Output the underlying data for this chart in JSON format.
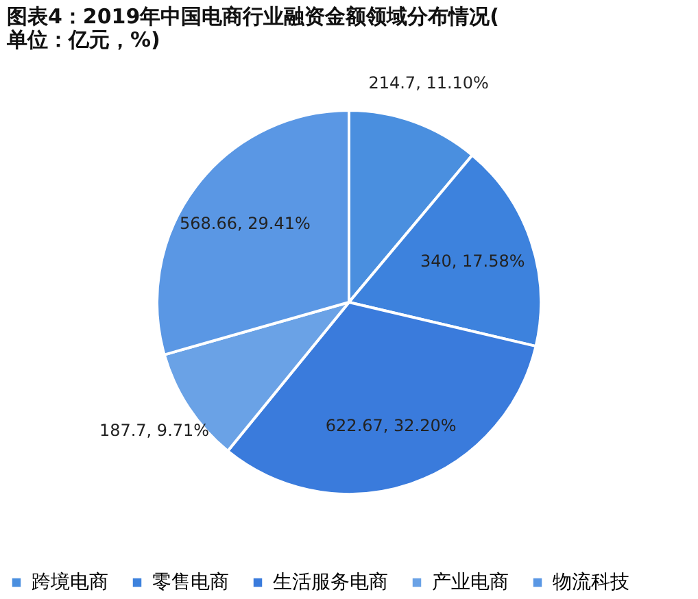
{
  "chart_data": {
    "type": "pie",
    "title": "图表4：2019年中国电商行业融资金额领域分布情况(单位：亿元，%)",
    "categories": [
      "跨境电商",
      "零售电商",
      "生活服务电商",
      "产业电商",
      "物流科技"
    ],
    "values": [
      11.1,
      17.58,
      32.2,
      9.71,
      29.41
    ],
    "value_labels": [
      "214.7, 11.10%",
      "340, 17.58%",
      "622.67, 32.20%",
      "187.7, 9.71%",
      "568.66, 29.41%"
    ],
    "colors": [
      "#4a8fdf",
      "#3d82dd",
      "#3a7bdc",
      "#6aa2e6",
      "#5a97e4"
    ],
    "legend": "bottom"
  }
}
